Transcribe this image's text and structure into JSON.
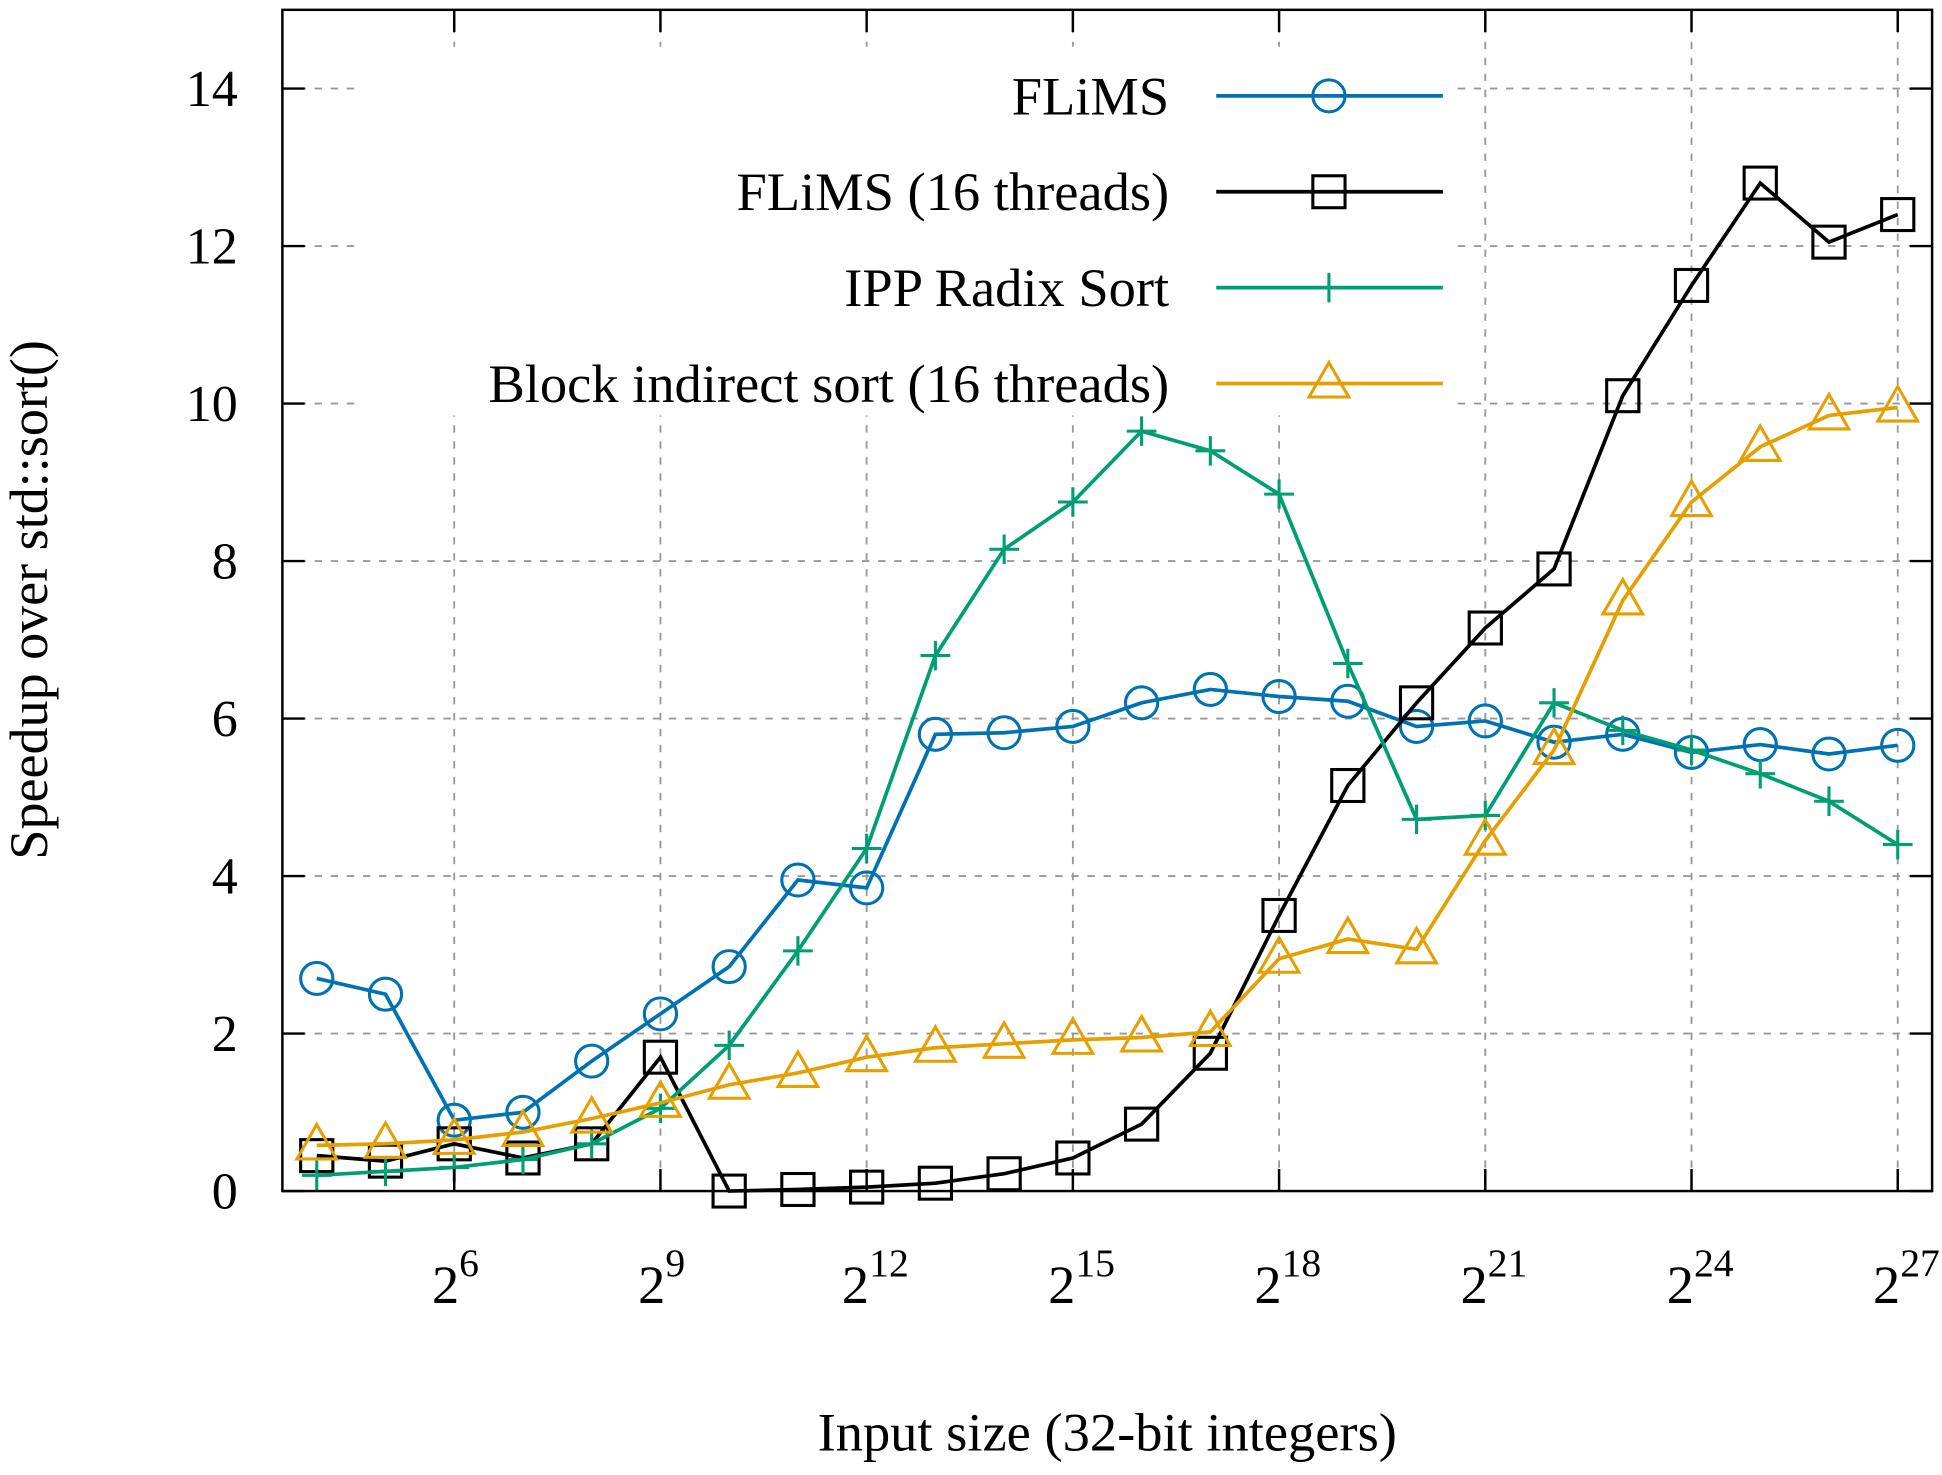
{
  "chart_data": {
    "type": "line",
    "title": "",
    "xlabel": "Input size (32-bit integers)",
    "ylabel": "Speedup over std::sort()",
    "x_scale": "log2",
    "x": [
      16,
      32,
      64,
      128,
      256,
      512,
      1024,
      2048,
      4096,
      8192,
      16384,
      32768,
      65536,
      131072,
      262144,
      524288,
      1048576,
      2097152,
      4194304,
      8388608,
      16777216,
      33554432,
      67108864,
      134217728
    ],
    "xlim_exponent": [
      3.5,
      27.5
    ],
    "xticks_exponent": [
      6,
      9,
      12,
      15,
      18,
      21,
      24,
      27
    ],
    "xtick_base": "2",
    "ylim": [
      0,
      15
    ],
    "yticks": [
      0,
      2,
      4,
      6,
      8,
      10,
      12,
      14
    ],
    "grid": true,
    "legend_position": "top-right",
    "series": [
      {
        "name": "FLiMS",
        "color": "#0072b2",
        "marker": "circle",
        "values": [
          2.7,
          2.5,
          0.9,
          1.0,
          1.65,
          2.25,
          2.85,
          3.95,
          3.85,
          5.8,
          5.82,
          5.9,
          6.2,
          6.37,
          6.28,
          6.22,
          5.9,
          5.97,
          5.7,
          5.8,
          5.57,
          5.67,
          5.55,
          5.66
        ]
      },
      {
        "name": "FLiMS (16 threads)",
        "color": "#000000",
        "marker": "square",
        "values": [
          0.45,
          0.38,
          0.6,
          0.42,
          0.6,
          1.7,
          0.0,
          0.02,
          0.05,
          0.1,
          0.22,
          0.42,
          0.85,
          1.75,
          3.5,
          5.15,
          6.2,
          7.15,
          7.9,
          10.1,
          11.5,
          12.8,
          12.05,
          12.4
        ]
      },
      {
        "name": "IPP Radix Sort",
        "color": "#009e73",
        "marker": "plus",
        "values": [
          0.2,
          0.25,
          0.3,
          0.4,
          0.6,
          1.05,
          1.85,
          3.05,
          4.35,
          6.8,
          8.15,
          8.75,
          9.65,
          9.4,
          8.85,
          6.7,
          4.72,
          4.77,
          6.2,
          5.85,
          5.6,
          5.3,
          4.95,
          4.4
        ]
      },
      {
        "name": "Block indirect sort (16 threads)",
        "color": "#e69f00",
        "marker": "triangle",
        "values": [
          0.58,
          0.6,
          0.65,
          0.75,
          0.92,
          1.12,
          1.35,
          1.5,
          1.7,
          1.82,
          1.87,
          1.92,
          1.95,
          2.02,
          2.95,
          3.2,
          3.07,
          4.45,
          5.6,
          7.5,
          8.75,
          9.45,
          9.85,
          9.95
        ]
      }
    ]
  }
}
